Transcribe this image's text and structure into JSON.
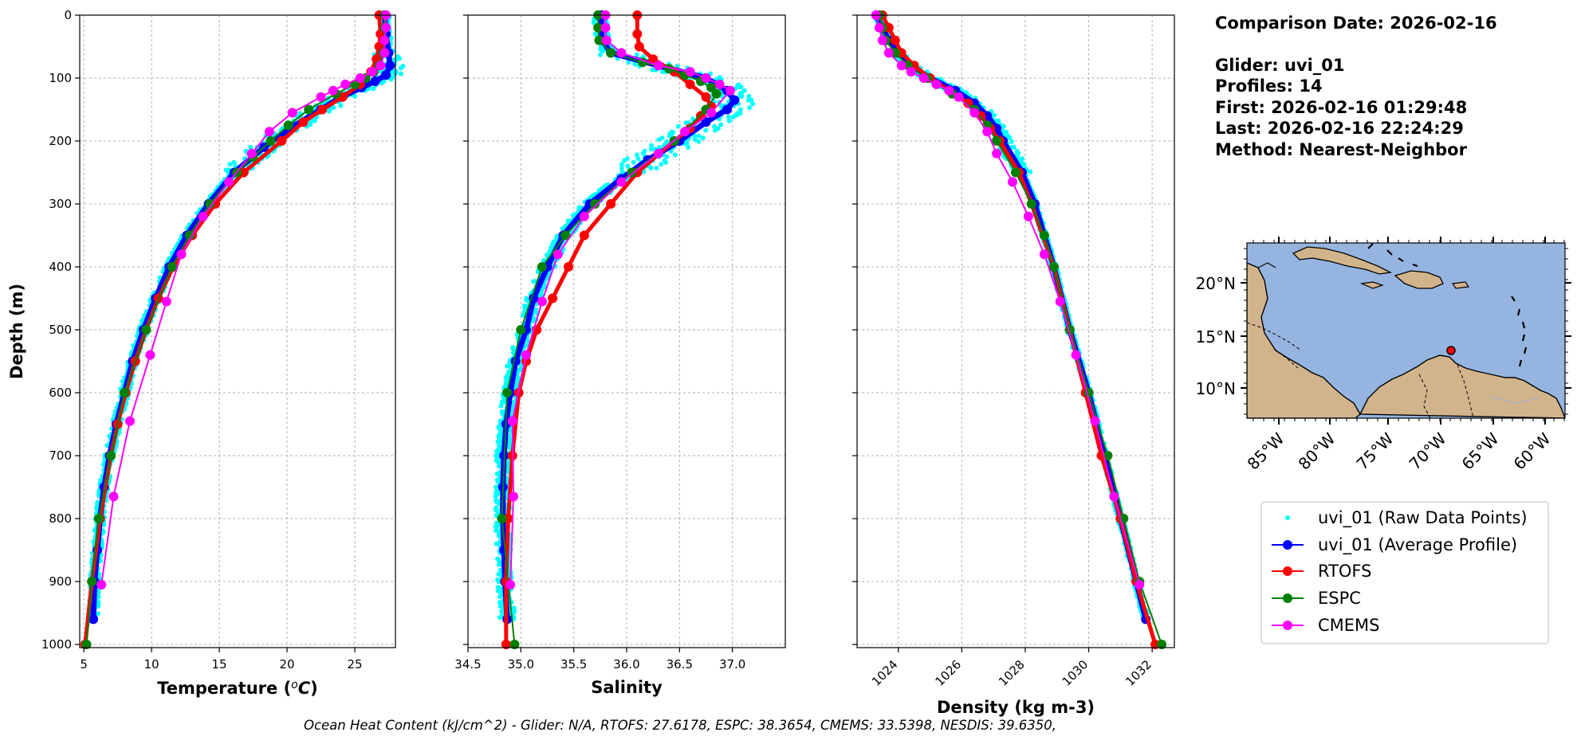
{
  "info": {
    "comparison_date": "Comparison Date: 2026-02-16",
    "glider": "Glider: uvi_01",
    "profiles": "Profiles: 14",
    "first": "First: 2026-02-16 01:29:48",
    "last": "Last: 2026-02-16 22:24:29",
    "method": "Method: Nearest-Neighbor"
  },
  "footer": "Ocean Heat Content (kJ/cm^2) - Glider: N/A,  RTOFS: 27.6178,  ESPC: 38.3654,  CMEMS: 33.5398,  NESDIS: 39.6350,",
  "colors": {
    "raw": "#00ffff",
    "glider": "#0000ff",
    "rtofs": "#ff0000",
    "espc": "#008000",
    "cmems": "#ff00ff",
    "land": "#d2b48c",
    "ocean": "#95b5e0"
  },
  "legend": {
    "raw": "uvi_01 (Raw Data Points)",
    "avg": "uvi_01 (Average Profile)",
    "rtofs": "RTOFS",
    "espc": "ESPC",
    "cmems": "CMEMS"
  },
  "chart_data": [
    {
      "type": "line",
      "xlabel": "Temperature (°C)",
      "ylabel": "Depth (m)",
      "xlim": [
        4.7,
        28.0
      ],
      "ylim": [
        1005,
        0
      ],
      "xticks": [
        5,
        10,
        15,
        20,
        25
      ],
      "yticks": [
        0,
        100,
        200,
        300,
        400,
        500,
        600,
        700,
        800,
        900,
        1000
      ],
      "grid": true,
      "series": [
        {
          "name": "uvi_01 (Average Profile)",
          "key": "glider",
          "depth": [
            0,
            30,
            60,
            80,
            95,
            105,
            115,
            130,
            150,
            180,
            210,
            250,
            300,
            350,
            400,
            450,
            500,
            550,
            600,
            650,
            700,
            750,
            800,
            850,
            900,
            960
          ],
          "values": [
            27.2,
            27.3,
            27.5,
            27.6,
            27.3,
            26.5,
            25.5,
            24.0,
            22.5,
            20.2,
            18.3,
            16.1,
            14.2,
            12.6,
            11.3,
            10.3,
            9.4,
            8.6,
            8.0,
            7.4,
            6.9,
            6.5,
            6.2,
            6.0,
            5.8,
            5.7
          ]
        },
        {
          "name": "RTOFS",
          "key": "rtofs",
          "depth": [
            0,
            30,
            50,
            70,
            90,
            110,
            130,
            150,
            170,
            200,
            250,
            300,
            350,
            400,
            450,
            500,
            550,
            600,
            650,
            700,
            800,
            900,
            1000
          ],
          "values": [
            26.8,
            26.9,
            26.8,
            26.6,
            26.2,
            25.4,
            24.1,
            22.6,
            21.2,
            19.6,
            16.8,
            14.7,
            13.0,
            11.6,
            10.5,
            9.6,
            8.8,
            8.1,
            7.5,
            7.0,
            6.2,
            5.6,
            5.1
          ]
        },
        {
          "name": "ESPC",
          "key": "espc",
          "depth": [
            0,
            20,
            40,
            60,
            80,
            90,
            100,
            110,
            125,
            150,
            175,
            200,
            225,
            250,
            300,
            350,
            400,
            500,
            600,
            700,
            800,
            900,
            1000
          ],
          "values": [
            27.2,
            27.2,
            27.2,
            27.1,
            26.8,
            26.4,
            25.8,
            25.0,
            23.6,
            21.6,
            20.1,
            18.8,
            17.5,
            16.3,
            14.3,
            12.8,
            11.5,
            9.6,
            8.0,
            7.0,
            6.1,
            5.6,
            5.2
          ]
        },
        {
          "name": "CMEMS",
          "key": "cmems",
          "depth": [
            0,
            20,
            40,
            60,
            80,
            90,
            100,
            110,
            120,
            130,
            155,
            185,
            220,
            265,
            320,
            380,
            455,
            540,
            645,
            765,
            905
          ],
          "values": [
            27.3,
            27.3,
            27.2,
            27.2,
            26.9,
            26.3,
            25.4,
            24.3,
            23.4,
            22.5,
            20.4,
            18.7,
            17.4,
            15.7,
            13.8,
            12.2,
            11.1,
            9.9,
            8.4,
            7.2,
            6.3
          ]
        }
      ]
    },
    {
      "type": "line",
      "xlabel": "Salinity",
      "xlim": [
        34.5,
        37.5
      ],
      "ylim": [
        1005,
        0
      ],
      "xticks": [
        34.5,
        35.0,
        35.5,
        36.0,
        36.5,
        37.0
      ],
      "yticks": [
        0,
        100,
        200,
        300,
        400,
        500,
        600,
        700,
        800,
        900,
        1000
      ],
      "grid": true,
      "series": [
        {
          "name": "uvi_01 (Average Profile)",
          "key": "glider",
          "depth": [
            0,
            20,
            40,
            60,
            80,
            100,
            120,
            135,
            150,
            170,
            200,
            230,
            260,
            300,
            350,
            400,
            450,
            500,
            550,
            600,
            650,
            700,
            750,
            800,
            850,
            900,
            960
          ],
          "values": [
            35.76,
            35.76,
            35.77,
            35.85,
            36.3,
            36.75,
            36.95,
            37.02,
            36.95,
            36.75,
            36.5,
            36.2,
            35.95,
            35.65,
            35.4,
            35.25,
            35.12,
            35.05,
            34.95,
            34.9,
            34.86,
            34.84,
            34.83,
            34.83,
            34.84,
            34.85,
            34.87
          ]
        },
        {
          "name": "RTOFS",
          "key": "rtofs",
          "depth": [
            0,
            30,
            50,
            70,
            90,
            110,
            130,
            145,
            160,
            180,
            200,
            250,
            300,
            350,
            400,
            450,
            500,
            550,
            600,
            700,
            800,
            900,
            1000
          ],
          "values": [
            36.1,
            36.1,
            36.12,
            36.25,
            36.45,
            36.6,
            36.75,
            36.8,
            36.7,
            36.6,
            36.45,
            36.1,
            35.85,
            35.6,
            35.45,
            35.3,
            35.15,
            35.05,
            34.98,
            34.92,
            34.88,
            34.86,
            34.86
          ]
        },
        {
          "name": "ESPC",
          "key": "espc",
          "depth": [
            0,
            20,
            40,
            60,
            75,
            85,
            95,
            105,
            115,
            125,
            150,
            200,
            250,
            300,
            350,
            400,
            500,
            600,
            800,
            1000
          ],
          "values": [
            35.73,
            35.73,
            35.74,
            35.85,
            36.15,
            36.4,
            36.55,
            36.7,
            36.8,
            36.85,
            36.75,
            36.45,
            36.05,
            35.7,
            35.42,
            35.2,
            35.0,
            34.87,
            34.82,
            34.94
          ]
        },
        {
          "name": "CMEMS",
          "key": "cmems",
          "depth": [
            0,
            20,
            40,
            60,
            80,
            90,
            100,
            110,
            120,
            155,
            185,
            220,
            265,
            320,
            380,
            455,
            540,
            645,
            765,
            905
          ],
          "values": [
            35.8,
            35.8,
            35.81,
            35.95,
            36.3,
            36.6,
            36.75,
            36.88,
            36.98,
            36.8,
            36.55,
            36.3,
            35.95,
            35.6,
            35.35,
            35.2,
            35.05,
            34.92,
            34.93,
            34.9
          ]
        }
      ]
    },
    {
      "type": "line",
      "xlabel": "Density (kg m-3)",
      "xlim": [
        1022.7,
        1032.7
      ],
      "ylim": [
        1005,
        0
      ],
      "xticks": [
        1024,
        1026,
        1028,
        1030,
        1032
      ],
      "yticks": [
        0,
        100,
        200,
        300,
        400,
        500,
        600,
        700,
        800,
        900,
        1000
      ],
      "grid": true,
      "series": [
        {
          "name": "uvi_01 (Average Profile)",
          "key": "glider",
          "depth": [
            0,
            20,
            40,
            60,
            80,
            100,
            120,
            140,
            160,
            180,
            200,
            250,
            300,
            400,
            500,
            600,
            700,
            800,
            900,
            960
          ],
          "values": [
            1023.3,
            1023.5,
            1023.7,
            1024.0,
            1024.4,
            1025.0,
            1025.8,
            1026.4,
            1026.8,
            1027.1,
            1027.3,
            1027.9,
            1028.3,
            1028.9,
            1029.4,
            1030.0,
            1030.5,
            1031.0,
            1031.5,
            1031.8
          ]
        },
        {
          "name": "RTOFS",
          "key": "rtofs",
          "depth": [
            0,
            20,
            40,
            60,
            80,
            100,
            120,
            140,
            160,
            180,
            200,
            250,
            300,
            400,
            500,
            600,
            700,
            800,
            900,
            1000
          ],
          "values": [
            1023.5,
            1023.7,
            1023.9,
            1024.1,
            1024.5,
            1025.0,
            1025.6,
            1026.2,
            1026.6,
            1026.9,
            1027.2,
            1027.8,
            1028.2,
            1028.9,
            1029.4,
            1029.9,
            1030.4,
            1031.0,
            1031.5,
            1032.1
          ]
        },
        {
          "name": "ESPC",
          "key": "espc",
          "depth": [
            0,
            20,
            40,
            60,
            80,
            100,
            125,
            150,
            175,
            200,
            250,
            300,
            350,
            400,
            500,
            600,
            700,
            800,
            900,
            1000
          ],
          "values": [
            1023.4,
            1023.5,
            1023.6,
            1023.9,
            1024.3,
            1024.9,
            1025.7,
            1026.4,
            1026.8,
            1027.1,
            1027.7,
            1028.2,
            1028.6,
            1028.9,
            1029.4,
            1030.0,
            1030.6,
            1031.1,
            1031.6,
            1032.3
          ]
        },
        {
          "name": "CMEMS",
          "key": "cmems",
          "depth": [
            0,
            20,
            40,
            60,
            80,
            90,
            100,
            110,
            120,
            130,
            155,
            185,
            220,
            265,
            320,
            380,
            455,
            540,
            645,
            765,
            905
          ],
          "values": [
            1023.3,
            1023.4,
            1023.5,
            1023.7,
            1024.1,
            1024.4,
            1024.8,
            1025.2,
            1025.6,
            1025.9,
            1026.4,
            1026.8,
            1027.1,
            1027.6,
            1028.1,
            1028.6,
            1029.1,
            1029.6,
            1030.2,
            1030.8,
            1031.6
          ]
        }
      ]
    }
  ],
  "map": {
    "lat_ticks": [
      "20°N",
      "15°N",
      "10°N"
    ],
    "lon_ticks": [
      "85°W",
      "80°W",
      "75°W",
      "70°W",
      "65°W",
      "60°W"
    ]
  }
}
